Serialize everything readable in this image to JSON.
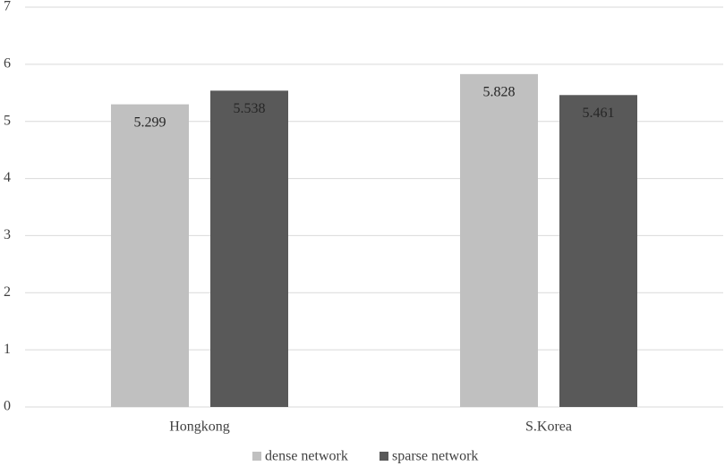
{
  "chart_data": {
    "type": "bar",
    "categories": [
      "Hongkong",
      "S.Korea"
    ],
    "series": [
      {
        "name": "dense network",
        "color": "#c0c0c0",
        "values": [
          5.299,
          5.828
        ]
      },
      {
        "name": "sparse network",
        "color": "#595959",
        "values": [
          5.538,
          5.461
        ]
      }
    ],
    "ylim": [
      0,
      7
    ],
    "yticks": [
      0,
      1,
      2,
      3,
      4,
      5,
      6,
      7
    ],
    "grid": true,
    "legend": "bottom"
  }
}
